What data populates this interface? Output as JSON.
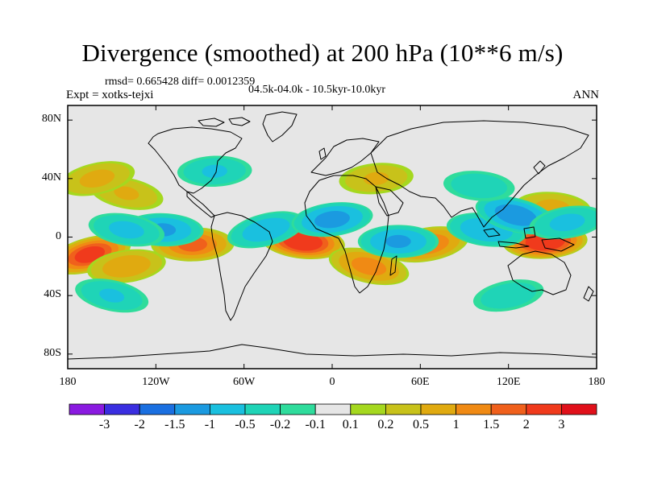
{
  "title": "Divergence (smoothed) at 200 hPa (10**6 m/s)",
  "stats": "rmsd= 0.665428 diff= 0.0012359",
  "experiment": "Expt = xotks-tejxi",
  "period": "04.5k-04.0k - 10.5kyr-10.0kyr",
  "season": "ANN",
  "map": {
    "projection": "cylindrical-equidistant",
    "lon_range": [
      -180,
      180
    ],
    "lat_range": [
      -90,
      90
    ],
    "lat_ticks": [
      {
        "value": 80,
        "label": "80N"
      },
      {
        "value": 40,
        "label": "40N"
      },
      {
        "value": 0,
        "label": "0"
      },
      {
        "value": -40,
        "label": "40S"
      },
      {
        "value": -80,
        "label": "80S"
      }
    ],
    "lon_ticks": [
      {
        "value": -180,
        "label": "180"
      },
      {
        "value": -120,
        "label": "120W"
      },
      {
        "value": -60,
        "label": "60W"
      },
      {
        "value": 0,
        "label": "0"
      },
      {
        "value": 60,
        "label": "60E"
      },
      {
        "value": 120,
        "label": "120E"
      },
      {
        "value": 180,
        "label": "180"
      }
    ],
    "background_color": "#e6e6e6"
  },
  "colorbar": {
    "colors": [
      "#8a1ae0",
      "#3a2ee0",
      "#1a6fe0",
      "#1b9ae0",
      "#1ac0df",
      "#1fd4b7",
      "#2fdc9c",
      "#e6e6e6",
      "#a5d81f",
      "#c8c21a",
      "#e0aa10",
      "#f08a14",
      "#f0601c",
      "#f03a1c",
      "#e0101a"
    ],
    "labels": [
      "-3",
      "-2",
      "-1.5",
      "-1",
      "-0.5",
      "-0.2",
      "-0.1",
      "0.1",
      "0.2",
      "0.5",
      "1",
      "1.5",
      "2",
      "3"
    ]
  },
  "field_features": [
    {
      "lon": -165,
      "lat": -12,
      "value": 2.2
    },
    {
      "lon": -140,
      "lat": -20,
      "value": 0.8
    },
    {
      "lon": -95,
      "lat": -5,
      "value": 1.6
    },
    {
      "lon": -20,
      "lat": -3,
      "value": 2.6
    },
    {
      "lon": 25,
      "lat": -20,
      "value": 1.2
    },
    {
      "lon": 65,
      "lat": -5,
      "value": 1.4
    },
    {
      "lon": 145,
      "lat": -3,
      "value": 2.6
    },
    {
      "lon": 150,
      "lat": 20,
      "value": 0.6
    },
    {
      "lon": -140,
      "lat": 30,
      "value": 0.5
    },
    {
      "lon": -160,
      "lat": 40,
      "value": 0.6
    },
    {
      "lon": 30,
      "lat": 40,
      "value": 0.5
    },
    {
      "lon": -115,
      "lat": 5,
      "value": -1.0
    },
    {
      "lon": -140,
      "lat": 5,
      "value": -0.6
    },
    {
      "lon": -45,
      "lat": 5,
      "value": -0.8
    },
    {
      "lon": 0,
      "lat": 12,
      "value": -1.2
    },
    {
      "lon": 45,
      "lat": -3,
      "value": -1.0
    },
    {
      "lon": 105,
      "lat": 5,
      "value": -0.9
    },
    {
      "lon": 125,
      "lat": 15,
      "value": -1.4
    },
    {
      "lon": 160,
      "lat": 10,
      "value": -0.6
    },
    {
      "lon": -80,
      "lat": 45,
      "value": -0.5
    },
    {
      "lon": 100,
      "lat": 35,
      "value": -0.4
    },
    {
      "lon": -150,
      "lat": -40,
      "value": -0.5
    },
    {
      "lon": 120,
      "lat": -40,
      "value": -0.4
    }
  ]
}
